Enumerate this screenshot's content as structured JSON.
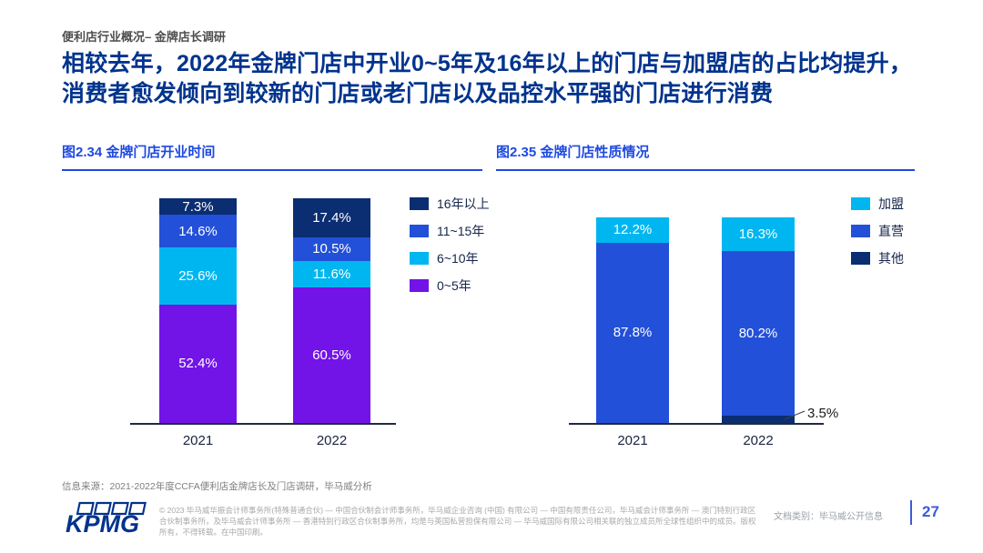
{
  "page": {
    "breadcrumb": "便利店行业概况– 金牌店长调研",
    "title": "相较去年，2022年金牌门店中开业0~5年及16年以上的门店与加盟店的占比均提升，消费者愈发倾向到较新的门店或老门店以及品控水平强的门店进行消费",
    "source": "信息来源：2021-2022年度CCFA便利店金牌店长及门店调研，毕马威分析"
  },
  "footer": {
    "logo_text": "KPMG",
    "copyright": "© 2023 毕马威华振会计师事务所(特殊普通合伙) — 中国合伙制会计师事务所，毕马威企业咨询 (中国) 有限公司 — 中国有限责任公司，毕马威会计师事务所 — 澳门特别行政区合伙制事务所，及毕马威会计师事务所 — 香港特别行政区合伙制事务所，均是与英国私营担保有限公司 — 毕马威国际有限公司相关联的独立成员所全球性组织中的成员。版权所有，不得转载。在中国印刷。",
    "doc_class": "文档类别：毕马威公开信息",
    "page_number": "27"
  },
  "colors": {
    "kpmg_blue": "#00338D",
    "accent_blue": "#1E49E0",
    "bar_navy": "#0B2D71",
    "bar_blue": "#2350D8",
    "bar_cyan": "#00B6F0",
    "bar_purple": "#7213E8",
    "axis": "#1F2940"
  },
  "chart_data": [
    {
      "type": "bar",
      "stacked": true,
      "title": "图2.34 金牌门店开业时间",
      "categories": [
        "2021",
        "2022"
      ],
      "series": [
        {
          "name": "16年以上",
          "color": "#0B2D71",
          "values": [
            7.3,
            17.4
          ]
        },
        {
          "name": "11~15年",
          "color": "#2350D8",
          "values": [
            14.6,
            10.5
          ]
        },
        {
          "name": "6~10年",
          "color": "#00B6F0",
          "values": [
            25.6,
            11.6
          ]
        },
        {
          "name": "0~5年",
          "color": "#7213E8",
          "values": [
            52.4,
            60.5
          ]
        }
      ],
      "unit": "%",
      "ylim": [
        0,
        100
      ],
      "grid": false,
      "legend_position": "right",
      "data_labels": true
    },
    {
      "type": "bar",
      "stacked": true,
      "title": "图2.35 金牌门店性质情况",
      "categories": [
        "2021",
        "2022"
      ],
      "series": [
        {
          "name": "加盟",
          "color": "#00B6F0",
          "values": [
            12.2,
            16.3
          ]
        },
        {
          "name": "直营",
          "color": "#2350D8",
          "values": [
            87.8,
            80.2
          ]
        },
        {
          "name": "其他",
          "color": "#0B2D71",
          "values": [
            0,
            3.5
          ]
        }
      ],
      "unit": "%",
      "ylim": [
        0,
        100
      ],
      "grid": false,
      "legend_position": "right",
      "data_labels": true
    }
  ]
}
